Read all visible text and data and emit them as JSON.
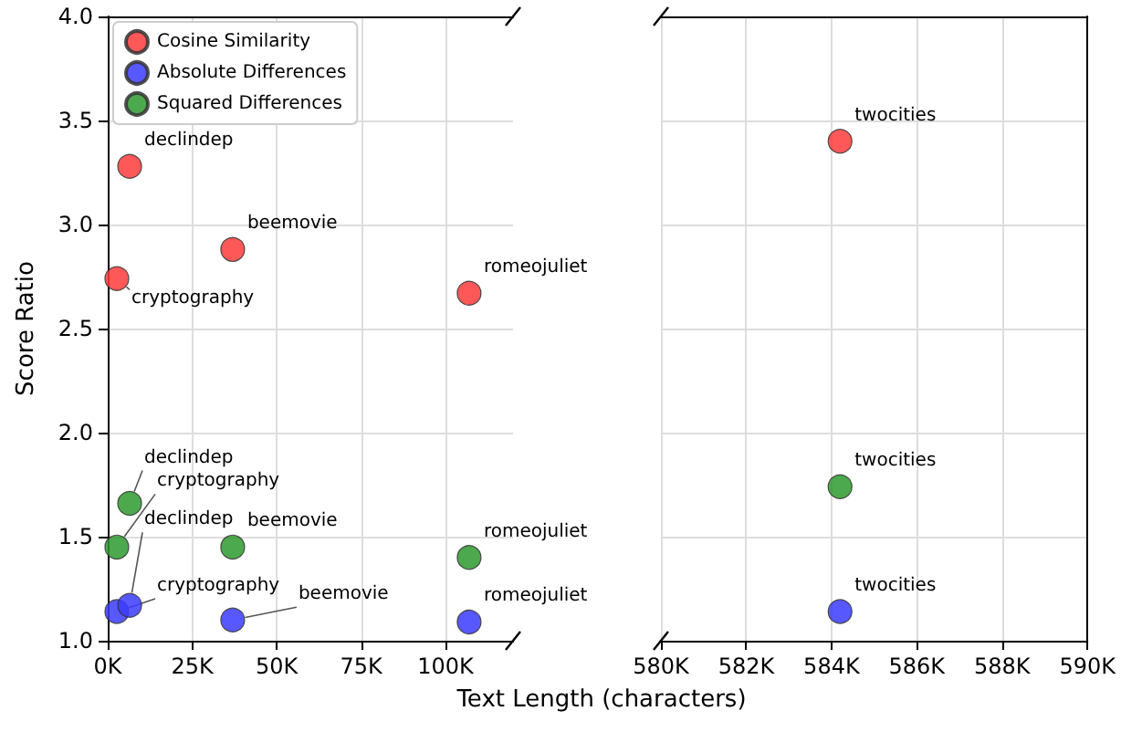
{
  "chart_data": [
    {
      "type": "scatter",
      "xlabel": "Text Length (characters)",
      "ylabel": "Score Ratio",
      "xlim": [
        0,
        120000
      ],
      "xticks": [
        {
          "value": 0,
          "label": "0K"
        },
        {
          "value": 25000,
          "label": "25K"
        },
        {
          "value": 50000,
          "label": "50K"
        },
        {
          "value": 75000,
          "label": "75K"
        },
        {
          "value": 100000,
          "label": "100K"
        }
      ],
      "ylim": [
        1,
        4
      ],
      "yticks": [
        {
          "value": 1,
          "label": "1.0"
        },
        1.5,
        {
          "value": 2,
          "label": "2.0"
        },
        2.5,
        {
          "value": 3,
          "label": "3.0"
        },
        3.5,
        {
          "value": 4,
          "label": "4.0"
        }
      ],
      "grid": true,
      "legend": "top left",
      "marker": "circle",
      "x": [
        2700,
        6500,
        37000,
        107000
      ],
      "series": [
        {
          "name": "Cosine Similarity",
          "color": "#ff3b3b",
          "values": [
            2.74,
            3.28,
            2.88,
            2.67
          ]
        },
        {
          "name": "Absolute Differences",
          "color": "#3b3bff",
          "values": [
            1.14,
            1.17,
            1.1,
            1.09
          ]
        },
        {
          "name": "Squared Differences",
          "color": "#2e9a2e",
          "values": [
            1.45,
            1.66,
            1.45,
            1.4
          ]
        }
      ],
      "annotations": [
        {
          "text": "cryptography",
          "x": 2700,
          "y": 2.74
        },
        {
          "text": "declindep",
          "x": 6500,
          "y": 3.28
        },
        {
          "text": "beemovie",
          "x": 37000,
          "y": 2.88
        },
        {
          "text": "romeojuliet",
          "x": 107000,
          "y": 2.67
        },
        {
          "text": "cryptography",
          "x": 2700,
          "y": 1.14
        },
        {
          "text": "declindep",
          "x": 6500,
          "y": 1.17
        },
        {
          "text": "beemovie",
          "x": 37000,
          "y": 1.1
        },
        {
          "text": "romeojuliet",
          "x": 107000,
          "y": 1.09
        },
        {
          "text": "cryptography",
          "x": 2700,
          "y": 1.45
        },
        {
          "text": "declindep",
          "x": 6500,
          "y": 1.66
        },
        {
          "text": "beemovie",
          "x": 37000,
          "y": 1.45
        },
        {
          "text": "romeojuliet",
          "x": 107000,
          "y": 1.4
        }
      ]
    },
    {
      "type": "scatter",
      "xlim": [
        580000,
        590000
      ],
      "xticks": [
        {
          "value": 580000,
          "label": "580K"
        },
        {
          "value": 582000,
          "label": "582K"
        },
        {
          "value": 584000,
          "label": "584K"
        },
        {
          "value": 586000,
          "label": "586K"
        },
        {
          "value": 588000,
          "label": "588K"
        },
        {
          "value": 590000,
          "label": "590K"
        }
      ],
      "ylim": [
        1,
        4
      ],
      "yticks": [
        1,
        1.5,
        2,
        2.5,
        3,
        3.5,
        4
      ],
      "grid": true,
      "marker": "circle",
      "tick_labels": "x",
      "x": [
        584200
      ],
      "series": [
        {
          "color": "#ff3b3b",
          "values": [
            3.4
          ]
        },
        {
          "color": "#3b3bff",
          "values": [
            1.14
          ]
        },
        {
          "color": "#2e9a2e",
          "values": [
            1.74
          ]
        }
      ],
      "annotations": [
        {
          "text": "twocities",
          "x": 584200,
          "y": 3.4
        },
        {
          "text": "twocities",
          "x": 584200,
          "y": 1.14
        },
        {
          "text": "twocities",
          "x": 584200,
          "y": 1.74
        }
      ]
    }
  ]
}
